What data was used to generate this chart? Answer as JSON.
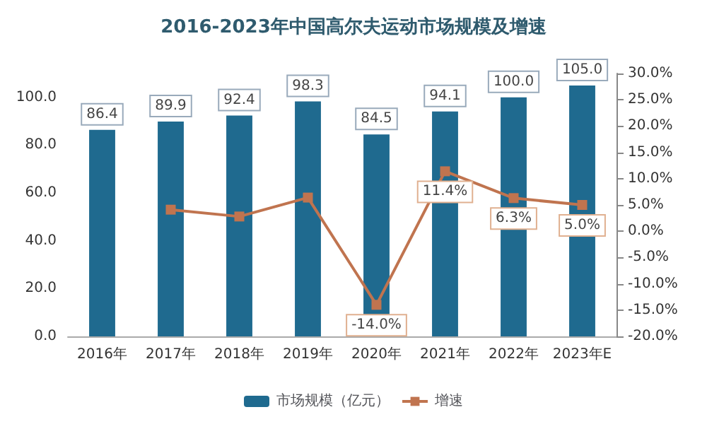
{
  "chart_data": {
    "type": "bar",
    "title": "2016-2023年中国高尔夫运动市场规模及增速",
    "categories": [
      "2016年",
      "2017年",
      "2018年",
      "2019年",
      "2020年",
      "2021年",
      "2022年",
      "2023年E"
    ],
    "series": [
      {
        "name": "市场规模（亿元）",
        "color": "#1f6a8f",
        "values": [
          86.4,
          89.9,
          92.4,
          98.3,
          84.5,
          94.1,
          100.0,
          105.0
        ],
        "value_labels": [
          "86.4",
          "89.9",
          "92.4",
          "98.3",
          "84.5",
          "94.1",
          "100.0",
          "105.0"
        ]
      },
      {
        "name": "增速",
        "type": "line",
        "axis": "y2",
        "color": "#c0744f",
        "values": [
          null,
          4.1,
          2.8,
          6.4,
          -14.0,
          11.4,
          6.3,
          5.0
        ],
        "value_labels": [
          null,
          null,
          null,
          null,
          "-14.0%",
          "11.4%",
          "6.3%",
          "5.0%"
        ]
      }
    ],
    "ylim": [
      0,
      110
    ],
    "yticks": [
      {
        "value": 0,
        "label": "0.0"
      },
      {
        "value": 20,
        "label": "20.0"
      },
      {
        "value": 40,
        "label": "40.0"
      },
      {
        "value": 60,
        "label": "60.0"
      },
      {
        "value": 80,
        "label": "80.0"
      },
      {
        "value": 100,
        "label": "100.0"
      }
    ],
    "y2lim": [
      -20,
      30
    ],
    "y2ticks": [
      {
        "value": -20,
        "label": "-20.0%"
      },
      {
        "value": -15,
        "label": "-15.0%"
      },
      {
        "value": -10,
        "label": "-10.0%"
      },
      {
        "value": -5,
        "label": "-5.0%"
      },
      {
        "value": 0,
        "label": "0.0%"
      },
      {
        "value": 5,
        "label": "5.0%"
      },
      {
        "value": 10,
        "label": "10.0%"
      },
      {
        "value": 15,
        "label": "15.0%"
      },
      {
        "value": 20,
        "label": "20.0%"
      },
      {
        "value": 25,
        "label": "25.0%"
      },
      {
        "value": 30,
        "label": "30.0%"
      }
    ],
    "marker": "square",
    "legend": "bottom",
    "grid": false
  }
}
